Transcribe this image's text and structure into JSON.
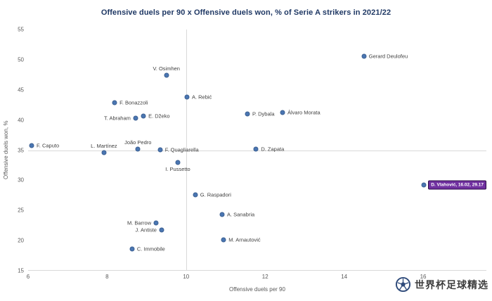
{
  "watermark": {
    "text": "世界杯足球精选"
  },
  "chart_data": {
    "type": "scatter",
    "title": "Offensive duels per 90 x Offensive duels won, % of Serie A strikers in 2021/22",
    "xlabel": "Offensive duels per 90",
    "ylabel": "Offensive duels won, %",
    "xlim": [
      6,
      17.6
    ],
    "ylim": [
      15,
      55
    ],
    "x_ticks": [
      6,
      8,
      10,
      12,
      14,
      16
    ],
    "y_ticks": [
      15,
      20,
      25,
      30,
      35,
      40,
      45,
      50,
      55
    ],
    "grid": false,
    "legend": false,
    "quadrant_lines": {
      "x": 10,
      "y": 35
    },
    "colors": {
      "dot": "#4a76b2",
      "highlight": "#7030a0",
      "title": "#1f3864",
      "axis_text": "#595959",
      "line": "#d9d9d9"
    },
    "points": [
      {
        "name": "F. Caputo",
        "x": 6.09,
        "y": 35.8,
        "label_side": "right"
      },
      {
        "name": "L. Martínez",
        "x": 7.92,
        "y": 34.6,
        "label_side": "above"
      },
      {
        "name": "João Pedro",
        "x": 8.78,
        "y": 35.2,
        "label_side": "above"
      },
      {
        "name": "F. Quagliarella",
        "x": 9.34,
        "y": 35.1,
        "label_side": "right"
      },
      {
        "name": "D. Zapata",
        "x": 11.77,
        "y": 35.2,
        "label_side": "right"
      },
      {
        "name": "I. Pussetto",
        "x": 9.79,
        "y": 33.0,
        "label_side": "below"
      },
      {
        "name": "V. Osimhen",
        "x": 9.5,
        "y": 47.4,
        "label_side": "above"
      },
      {
        "name": "A. Rebić",
        "x": 10.02,
        "y": 43.8,
        "label_side": "right"
      },
      {
        "name": "F. Bonazzoli",
        "x": 8.19,
        "y": 42.9,
        "label_side": "right"
      },
      {
        "name": "T. Abraham",
        "x": 8.72,
        "y": 40.3,
        "label_side": "left"
      },
      {
        "name": "E. Džeko",
        "x": 8.92,
        "y": 40.7,
        "label_side": "right"
      },
      {
        "name": "P. Dybala",
        "x": 11.55,
        "y": 41.0,
        "label_side": "right"
      },
      {
        "name": "Álvaro Morata",
        "x": 12.44,
        "y": 41.2,
        "label_side": "right"
      },
      {
        "name": "Gerard Deulofeu",
        "x": 14.5,
        "y": 50.6,
        "label_side": "right"
      },
      {
        "name": "G. Raspadori",
        "x": 10.23,
        "y": 27.6,
        "label_side": "right"
      },
      {
        "name": "A. Sanabria",
        "x": 10.91,
        "y": 24.3,
        "label_side": "right"
      },
      {
        "name": "M. Barrow",
        "x": 9.24,
        "y": 22.9,
        "label_side": "left"
      },
      {
        "name": "J. Antiste",
        "x": 9.38,
        "y": 21.8,
        "label_side": "left"
      },
      {
        "name": "C. Immobile",
        "x": 8.63,
        "y": 18.6,
        "label_side": "right"
      },
      {
        "name": "M. Arnautović",
        "x": 10.95,
        "y": 20.1,
        "label_side": "right"
      },
      {
        "name": "D. Vlahović",
        "x": 16.02,
        "y": 29.17,
        "label_side": "box-right",
        "highlight": true,
        "label_text": "D. Vlahović, 16.02, 29.17"
      }
    ]
  }
}
